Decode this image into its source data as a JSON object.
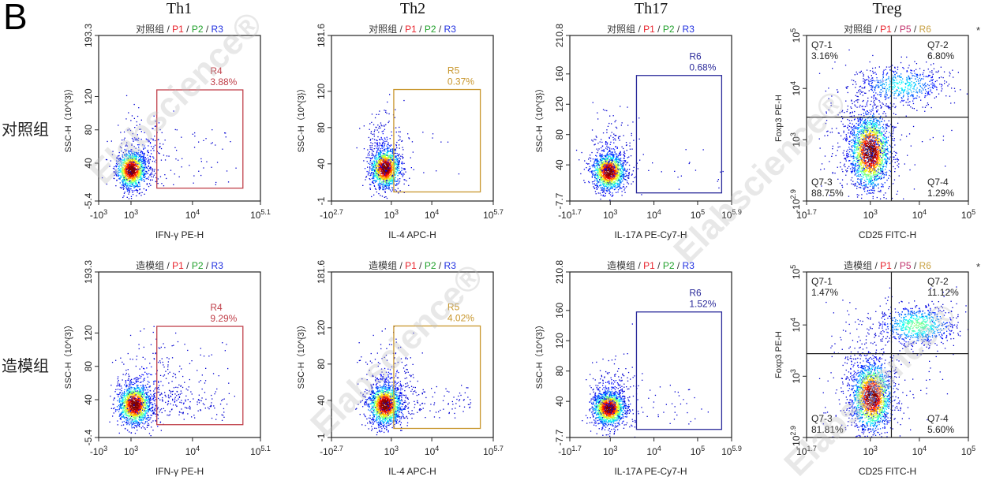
{
  "figure_label": "B",
  "watermark": "Elabscience®",
  "columns": [
    "Th1",
    "Th2",
    "Th17",
    "Treg"
  ],
  "rows": [
    "对照组",
    "造模组"
  ],
  "colors": {
    "red": "#e8202a",
    "green": "#1fa02a",
    "blue": "#2030e0",
    "gray": "#333333",
    "p5": "#c0306a",
    "r6": "#c8a040",
    "gate_r4": "#c0404a",
    "gate_r5": "#c8962c",
    "gate_r6": "#2a2a9a"
  },
  "chart_data": [
    {
      "type": "scatter",
      "column": "Th1",
      "row": "对照组",
      "subtitle": [
        {
          "text": "对照组",
          "color": "#333333"
        },
        {
          "text": " / ",
          "color": "#333333"
        },
        {
          "text": "P1",
          "color": "#e8202a"
        },
        {
          "text": " / ",
          "color": "#333333"
        },
        {
          "text": "P2",
          "color": "#1fa02a"
        },
        {
          "text": " / ",
          "color": "#333333"
        },
        {
          "text": "R3",
          "color": "#2030e0"
        }
      ],
      "xlabel": "IFN-γ PE-H",
      "ylabel": "SSC-H（10^{3}）",
      "xscale": "biexponential",
      "yscale": "linear",
      "xticks": [
        "-10^{3}",
        "10^{3}",
        "10^{4}",
        "10^{5.1}"
      ],
      "xtick_log10": [
        null,
        3,
        4,
        5.1
      ],
      "yticks": [
        "-5.4",
        "40",
        "80",
        "120",
        "193.3"
      ],
      "ylim": [
        -5.4,
        193.3
      ],
      "gate": {
        "name": "R4",
        "percent": "3.88%",
        "color": "#c0404a",
        "x_log10": [
          3.42,
          4.82
        ],
        "y": [
          10,
          128
        ]
      }
    },
    {
      "type": "scatter",
      "column": "Th2",
      "row": "对照组",
      "subtitle": [
        {
          "text": "对照组",
          "color": "#333333"
        },
        {
          "text": " / ",
          "color": "#333333"
        },
        {
          "text": "P1",
          "color": "#e8202a"
        },
        {
          "text": " / ",
          "color": "#333333"
        },
        {
          "text": "P2",
          "color": "#1fa02a"
        },
        {
          "text": " / ",
          "color": "#333333"
        },
        {
          "text": "R3",
          "color": "#2030e0"
        }
      ],
      "xlabel": "IL-4 APC-H",
      "ylabel": "SSC-H（10^{3}）",
      "xscale": "biexponential",
      "yscale": "linear",
      "xticks": [
        "-10^{2.7}",
        "10^{3}",
        "10^{4}",
        "10^{5.7}"
      ],
      "xtick_log10": [
        null,
        3,
        4,
        5.7
      ],
      "yticks": [
        "-1",
        "40",
        "80",
        "120",
        "181.6"
      ],
      "ylim": [
        -1,
        181.6
      ],
      "gate": {
        "name": "R5",
        "percent": "0.37%",
        "color": "#c8962c",
        "x_log10": [
          3.06,
          5.2
        ],
        "y": [
          9,
          122
        ]
      }
    },
    {
      "type": "scatter",
      "column": "Th17",
      "row": "对照组",
      "subtitle": [
        {
          "text": "对照组",
          "color": "#333333"
        },
        {
          "text": " / ",
          "color": "#333333"
        },
        {
          "text": "P1",
          "color": "#e8202a"
        },
        {
          "text": " / ",
          "color": "#333333"
        },
        {
          "text": "P2",
          "color": "#1fa02a"
        },
        {
          "text": " / ",
          "color": "#333333"
        },
        {
          "text": "R3",
          "color": "#2030e0"
        }
      ],
      "xlabel": "IL-17A PE-Cy7-H",
      "ylabel": "SSC-H（10^{3}）",
      "xscale": "biexponential",
      "yscale": "linear",
      "xticks": [
        "-10^{1.7}",
        "10^{3}",
        "10^{4}",
        "10^{5}",
        "10^{5.9}"
      ],
      "xtick_log10": [
        null,
        3,
        4,
        5,
        5.9
      ],
      "yticks": [
        "-7.7",
        "40",
        "80",
        "120",
        "160",
        "210.8"
      ],
      "ylim": [
        -7.7,
        210.8
      ],
      "gate": {
        "name": "R6",
        "percent": "0.68%",
        "color": "#2a2a9a",
        "x_log10": [
          3.6,
          5.55
        ],
        "y": [
          3,
          158
        ]
      }
    },
    {
      "type": "scatter",
      "column": "Treg",
      "row": "对照组",
      "subtitle": [
        {
          "text": "对照组",
          "color": "#333333"
        },
        {
          "text": " / ",
          "color": "#333333"
        },
        {
          "text": "P1",
          "color": "#e8202a"
        },
        {
          "text": " / ",
          "color": "#333333"
        },
        {
          "text": "P5",
          "color": "#c0306a"
        },
        {
          "text": " / ",
          "color": "#333333"
        },
        {
          "text": "R6",
          "color": "#c8a040"
        }
      ],
      "marker": "*",
      "xlabel": "CD25 FITC-H",
      "ylabel": "Foxp3 PE-H",
      "xscale": "log",
      "yscale": "biexponential",
      "xticks": [
        "10^{1.7}",
        "10^{3}",
        "10^{4}",
        "10^{5}"
      ],
      "xtick_log10": [
        1.7,
        3,
        4,
        5
      ],
      "yticks": [
        "-10^{2.9}",
        "10^{3}",
        "10^{4}",
        "10^{5}"
      ],
      "ytick_log10": [
        null,
        3,
        4,
        5
      ],
      "quadrants": {
        "x_threshold_log10": 3.43,
        "y_threshold_log10": 3.44,
        "items": [
          {
            "name": "Q7-1",
            "percent": "3.16%"
          },
          {
            "name": "Q7-2",
            "percent": "6.80%"
          },
          {
            "name": "Q7-3",
            "percent": "88.75%"
          },
          {
            "name": "Q7-4",
            "percent": "1.29%"
          }
        ]
      }
    },
    {
      "type": "scatter",
      "column": "Th1",
      "row": "造模组",
      "subtitle": [
        {
          "text": "造模组",
          "color": "#333333"
        },
        {
          "text": " / ",
          "color": "#333333"
        },
        {
          "text": "P1",
          "color": "#e8202a"
        },
        {
          "text": " / ",
          "color": "#333333"
        },
        {
          "text": "P2",
          "color": "#1fa02a"
        },
        {
          "text": " / ",
          "color": "#333333"
        },
        {
          "text": "R3",
          "color": "#2030e0"
        }
      ],
      "xlabel": "IFN-γ PE-H",
      "ylabel": "SSC-H（10^{3}）",
      "xscale": "biexponential",
      "yscale": "linear",
      "xticks": [
        "-10^{3}",
        "10^{3}",
        "10^{4}",
        "10^{5.1}"
      ],
      "xtick_log10": [
        null,
        3,
        4,
        5.1
      ],
      "yticks": [
        "-5.4",
        "40",
        "80",
        "120",
        "193.3"
      ],
      "ylim": [
        -5.4,
        193.3
      ],
      "gate": {
        "name": "R4",
        "percent": "9.29%",
        "color": "#c0404a",
        "x_log10": [
          3.42,
          4.82
        ],
        "y": [
          10,
          128
        ]
      }
    },
    {
      "type": "scatter",
      "column": "Th2",
      "row": "造模组",
      "subtitle": [
        {
          "text": "造模组",
          "color": "#333333"
        },
        {
          "text": " / ",
          "color": "#333333"
        },
        {
          "text": "P1",
          "color": "#e8202a"
        },
        {
          "text": " / ",
          "color": "#333333"
        },
        {
          "text": "P2",
          "color": "#1fa02a"
        },
        {
          "text": " / ",
          "color": "#333333"
        },
        {
          "text": "R3",
          "color": "#2030e0"
        }
      ],
      "xlabel": "IL-4 APC-H",
      "ylabel": "SSC-H（10^{3}）",
      "xscale": "biexponential",
      "yscale": "linear",
      "xticks": [
        "-10^{2.7}",
        "10^{3}",
        "10^{4}",
        "10^{5.7}"
      ],
      "xtick_log10": [
        null,
        3,
        4,
        5.7
      ],
      "yticks": [
        "-1",
        "40",
        "80",
        "120",
        "181.6"
      ],
      "ylim": [
        -1,
        181.6
      ],
      "gate": {
        "name": "R5",
        "percent": "4.02%",
        "color": "#c8962c",
        "x_log10": [
          3.06,
          5.2
        ],
        "y": [
          9,
          122
        ]
      }
    },
    {
      "type": "scatter",
      "column": "Th17",
      "row": "造模组",
      "subtitle": [
        {
          "text": "造模组",
          "color": "#333333"
        },
        {
          "text": " / ",
          "color": "#333333"
        },
        {
          "text": "P1",
          "color": "#e8202a"
        },
        {
          "text": " / ",
          "color": "#333333"
        },
        {
          "text": "P2",
          "color": "#1fa02a"
        },
        {
          "text": " / ",
          "color": "#333333"
        },
        {
          "text": "R3",
          "color": "#2030e0"
        }
      ],
      "xlabel": "IL-17A PE-Cy7-H",
      "ylabel": "SSC-H（10^{3}）",
      "xscale": "biexponential",
      "yscale": "linear",
      "xticks": [
        "-10^{1.7}",
        "10^{3}",
        "10^{4}",
        "10^{5}",
        "10^{5.9}"
      ],
      "xtick_log10": [
        null,
        3,
        4,
        5,
        5.9
      ],
      "yticks": [
        "-7.7",
        "40",
        "80",
        "120",
        "160",
        "210.8"
      ],
      "ylim": [
        -7.7,
        210.8
      ],
      "gate": {
        "name": "R6",
        "percent": "1.52%",
        "color": "#2a2a9a",
        "x_log10": [
          3.6,
          5.55
        ],
        "y": [
          3,
          158
        ]
      }
    },
    {
      "type": "scatter",
      "column": "Treg",
      "row": "造模组",
      "subtitle": [
        {
          "text": "造模组",
          "color": "#333333"
        },
        {
          "text": " / ",
          "color": "#333333"
        },
        {
          "text": "P1",
          "color": "#e8202a"
        },
        {
          "text": " / ",
          "color": "#333333"
        },
        {
          "text": "P5",
          "color": "#c0306a"
        },
        {
          "text": " / ",
          "color": "#333333"
        },
        {
          "text": "R6",
          "color": "#c8a040"
        }
      ],
      "marker": "*",
      "xlabel": "CD25 FITC-H",
      "ylabel": "Foxp3 PE-H",
      "xscale": "log",
      "yscale": "biexponential",
      "xticks": [
        "10^{1.7}",
        "10^{3}",
        "10^{4}",
        "10^{5}"
      ],
      "xtick_log10": [
        1.7,
        3,
        4,
        5
      ],
      "yticks": [
        "-10^{2.9}",
        "10^{3}",
        "10^{4}",
        "10^{5}"
      ],
      "ytick_log10": [
        null,
        3,
        4,
        5
      ],
      "quadrants": {
        "x_threshold_log10": 3.43,
        "y_threshold_log10": 3.44,
        "items": [
          {
            "name": "Q7-1",
            "percent": "1.47%"
          },
          {
            "name": "Q7-2",
            "percent": "11.12%"
          },
          {
            "name": "Q7-3",
            "percent": "81.81%"
          },
          {
            "name": "Q7-4",
            "percent": "5.60%"
          }
        ]
      }
    }
  ]
}
